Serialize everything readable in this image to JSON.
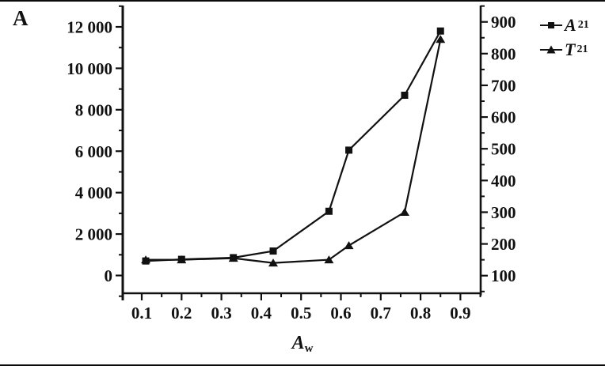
{
  "panel_label": "A",
  "colors": {
    "ink": "#111111",
    "background": "#ffffff"
  },
  "legend": {
    "position": "top-right-outside",
    "entries": [
      {
        "id": "A21",
        "label_main": "A",
        "label_sub": "21",
        "marker": "square"
      },
      {
        "id": "T21",
        "label_main": "T",
        "label_sub": "21",
        "marker": "triangle"
      }
    ]
  },
  "chart_data": {
    "type": "line",
    "title": "",
    "xlabel_main": "A",
    "xlabel_sub": "w",
    "x": [
      0.11,
      0.2,
      0.33,
      0.43,
      0.57,
      0.62,
      0.76,
      0.85
    ],
    "series": [
      {
        "name": "A21",
        "axis": "left",
        "marker": "square",
        "values": [
          700,
          780,
          860,
          1180,
          3100,
          6050,
          8700,
          11800
        ]
      },
      {
        "name": "T21",
        "axis": "right",
        "marker": "triangle",
        "values": [
          150,
          150,
          155,
          140,
          150,
          195,
          300,
          845
        ]
      }
    ],
    "x_axis": {
      "ticks": [
        0.1,
        0.2,
        0.3,
        0.4,
        0.5,
        0.6,
        0.7,
        0.8,
        0.9
      ],
      "tick_labels": [
        "0.1",
        "0.2",
        "0.3",
        "0.4",
        "0.5",
        "0.6",
        "0.7",
        "0.8",
        "0.9"
      ],
      "minor_step": 0.05,
      "minor_range": [
        0.05,
        0.95
      ]
    },
    "left_axis": {
      "ticks": [
        0,
        2000,
        4000,
        6000,
        8000,
        10000,
        12000
      ],
      "tick_labels": [
        "0",
        "2 000",
        "4 000",
        "6 000",
        "8 000",
        "10 000",
        "12 000"
      ],
      "minor_step": 1000,
      "minor_range": [
        -1000,
        13000
      ]
    },
    "right_axis": {
      "ticks": [
        100,
        200,
        300,
        400,
        500,
        600,
        700,
        800,
        900
      ],
      "tick_labels": [
        "100",
        "200",
        "300",
        "400",
        "500",
        "600",
        "700",
        "800",
        "900"
      ],
      "minor_step": 50,
      "minor_range": [
        50,
        950
      ]
    },
    "grid": false
  }
}
